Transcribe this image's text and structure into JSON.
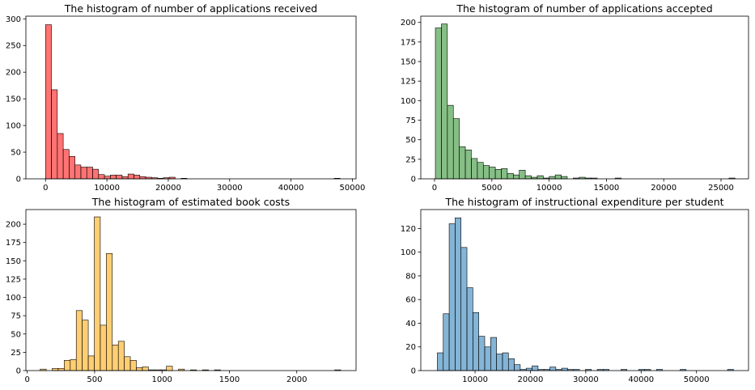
{
  "chart_data": [
    {
      "type": "bar",
      "title": "The histogram of number of applications received",
      "xlabel": "",
      "ylabel": "",
      "color": "#ff0000",
      "xlim": [
        -3200,
        50600
      ],
      "ylim": [
        0,
        305
      ],
      "xticks": [
        0,
        10000,
        20000,
        30000,
        40000,
        50000
      ],
      "xtick_labels": [
        "0",
        "10000",
        "20000",
        "30000",
        "40000",
        "50000"
      ],
      "yticks": [
        0,
        50,
        100,
        150,
        200,
        250,
        300
      ],
      "ytick_labels": [
        "0",
        "50",
        "100",
        "150",
        "200",
        "250",
        "300"
      ],
      "bins": {
        "start": 0,
        "width": 960
      },
      "values": [
        289,
        167,
        85,
        55,
        42,
        26,
        22,
        22,
        18,
        8,
        5,
        7,
        7,
        4,
        9,
        7,
        4,
        3,
        2,
        1,
        2,
        3,
        0,
        1,
        0,
        0,
        0,
        0,
        0,
        0,
        0,
        0,
        0,
        0,
        0,
        0,
        0,
        0,
        0,
        0,
        0,
        0,
        0,
        0,
        0,
        0,
        0,
        0,
        0,
        1
      ]
    },
    {
      "type": "bar",
      "title": "The histogram of number of applications accepted",
      "xlabel": "",
      "ylabel": "",
      "color": "#228b22",
      "xlim": [
        -1200,
        27400
      ],
      "ylim": [
        0,
        208
      ],
      "xticks": [
        0,
        5000,
        10000,
        15000,
        20000,
        25000
      ],
      "xtick_labels": [
        "0",
        "5000",
        "10000",
        "15000",
        "20000",
        "25000"
      ],
      "yticks": [
        0,
        25,
        50,
        75,
        100,
        125,
        150,
        175,
        200
      ],
      "ytick_labels": [
        "0",
        "25",
        "50",
        "75",
        "100",
        "125",
        "150",
        "175",
        "200"
      ],
      "bins": {
        "start": 72,
        "width": 523
      },
      "values": [
        193,
        198,
        94,
        77,
        41,
        37,
        26,
        21,
        17,
        15,
        12,
        13,
        7,
        5,
        11,
        4,
        2,
        4,
        1,
        3,
        5,
        3,
        0,
        1,
        2,
        1,
        1,
        0,
        0,
        0,
        1,
        0,
        0,
        0,
        0,
        0,
        0,
        0,
        0,
        0,
        0,
        0,
        0,
        0,
        0,
        0,
        0,
        0,
        0,
        1
      ]
    },
    {
      "type": "bar",
      "title": "The histogram of estimated book costs",
      "xlabel": "",
      "ylabel": "",
      "color": "#ffa500",
      "xlim": [
        -10,
        2440
      ],
      "ylim": [
        0,
        220
      ],
      "xticks": [
        0,
        500,
        1000,
        1500,
        2000
      ],
      "xtick_labels": [
        "0",
        "500",
        "1000",
        "1500",
        "2000"
      ],
      "yticks": [
        0,
        25,
        50,
        75,
        100,
        125,
        150,
        175,
        200
      ],
      "ytick_labels": [
        "0",
        "25",
        "50",
        "75",
        "100",
        "125",
        "150",
        "175",
        "200"
      ],
      "bins": {
        "start": 96,
        "width": 44.6
      },
      "values": [
        2,
        0,
        3,
        3,
        14,
        15,
        82,
        69,
        20,
        210,
        62,
        160,
        35,
        40,
        19,
        14,
        4,
        5,
        1,
        1,
        1,
        6,
        0,
        2,
        0,
        1,
        0,
        1,
        0,
        1,
        0,
        0,
        0,
        0,
        0,
        0,
        0,
        0,
        0,
        0,
        0,
        0,
        0,
        0,
        0,
        0,
        0,
        0,
        0,
        1
      ]
    },
    {
      "type": "bar",
      "title": "The histogram of instructional expenditure per student",
      "xlabel": "",
      "ylabel": "",
      "color": "#1f77b4",
      "xlim": [
        200,
        59400
      ],
      "ylim": [
        0,
        136
      ],
      "xticks": [
        10000,
        20000,
        30000,
        40000,
        50000
      ],
      "xtick_labels": [
        "10000",
        "20000",
        "30000",
        "40000",
        "50000"
      ],
      "yticks": [
        0,
        20,
        40,
        60,
        80,
        100,
        120
      ],
      "ytick_labels": [
        "0",
        "20",
        "40",
        "60",
        "80",
        "100",
        "120"
      ],
      "bins": {
        "start": 3186,
        "width": 1070
      },
      "values": [
        15,
        48,
        124,
        129,
        104,
        70,
        49,
        29,
        20,
        28,
        14,
        15,
        10,
        5,
        1,
        2,
        4,
        1,
        1,
        3,
        1,
        2,
        1,
        1,
        0,
        1,
        0,
        1,
        1,
        0,
        0,
        1,
        0,
        0,
        1,
        1,
        0,
        1,
        0,
        0,
        0,
        1,
        0,
        0,
        0,
        0,
        0,
        0,
        0,
        1
      ]
    }
  ]
}
